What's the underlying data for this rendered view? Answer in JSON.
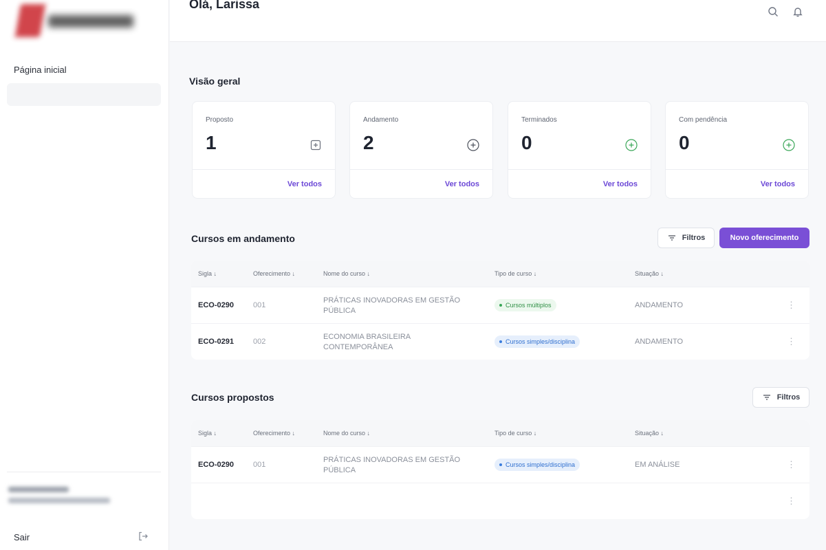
{
  "sidebar": {
    "nav_home": "Página inicial",
    "logout": "Sair"
  },
  "header": {
    "greeting": "Olá, Larissa",
    "search_icon": "search-icon",
    "bell_icon": "bell-icon"
  },
  "overview": {
    "title": "Visão geral",
    "cards": [
      {
        "label": "Proposto",
        "value": "1",
        "link": "Ver todos",
        "icon": "plus-square-icon"
      },
      {
        "label": "Andamento",
        "value": "2",
        "link": "Ver todos",
        "icon": "plus-circle-icon"
      },
      {
        "label": "Terminados",
        "value": "0",
        "link": "Ver todos",
        "icon": "plus-circle-green-icon"
      },
      {
        "label": "Com pendência",
        "value": "0",
        "link": "Ver todos",
        "icon": "plus-circle-green-icon"
      }
    ]
  },
  "colors": {
    "accent": "#7a4fd6",
    "link": "#6b47d6",
    "green": "#39a657",
    "blue": "#3b7ddd"
  },
  "table_headers": [
    "Sigla",
    "Oferecimento",
    "Nome do curso",
    "Tipo de curso",
    "Situação"
  ],
  "andamento": {
    "title": "Cursos em andamento",
    "filter_label": "Filtros",
    "new_label": "Novo oferecimento",
    "rows": [
      {
        "sigla": "ECO-0290",
        "oferecimento": "001",
        "nome_l1": "PRÁTICAS INOVADORAS EM GESTÃO",
        "nome_l2": "PÚBLICA",
        "tipo": "Cursos múltiplos",
        "situacao": "ANDAMENTO"
      },
      {
        "sigla": "ECO-0291",
        "oferecimento": "002",
        "nome_l1": "ECONOMIA BRASILEIRA",
        "nome_l2": "CONTEMPORÂNEA",
        "tipo": "Cursos simples/disciplina",
        "situacao": "ANDAMENTO"
      }
    ]
  },
  "propostos": {
    "title": "Cursos propostos",
    "filter_label": "Filtros",
    "rows": [
      {
        "sigla": "ECO-0290",
        "oferecimento": "001",
        "nome_l1": "PRÁTICAS INOVADORAS EM GESTÃO",
        "nome_l2": "PÚBLICA",
        "tipo": "Cursos simples/disciplina",
        "situacao": "EM ANÁLISE"
      }
    ]
  }
}
